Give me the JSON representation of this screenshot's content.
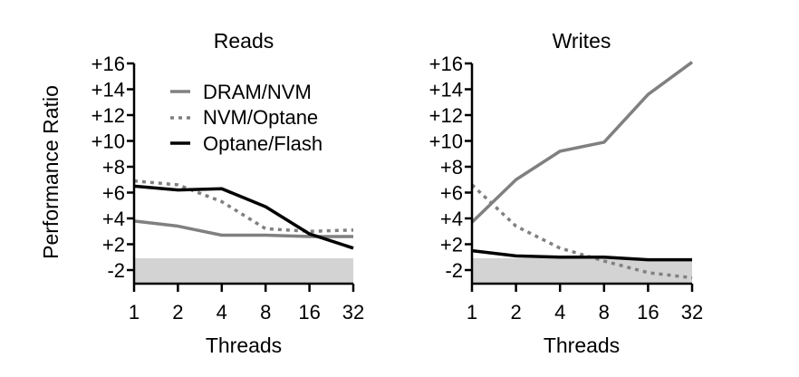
{
  "chart_data": [
    {
      "type": "line",
      "title": "Reads",
      "xlabel": "Threads",
      "ylabel": "Performance Ratio",
      "x": [
        "1",
        "2",
        "4",
        "8",
        "16",
        "32"
      ],
      "yticks": [
        "-2",
        "+2",
        "+4",
        "+6",
        "+8",
        "+10",
        "+12",
        "+14",
        "+16"
      ],
      "shaded_band": "-2",
      "series": [
        {
          "name": "DRAM/NVM",
          "style": "solid",
          "color": "#808080",
          "values": [
            3.8,
            3.4,
            2.7,
            2.7,
            2.6,
            2.6
          ]
        },
        {
          "name": "NVM/Optane",
          "style": "dotted",
          "color": "#808080",
          "values": [
            6.9,
            6.6,
            5.3,
            3.2,
            3.0,
            3.1
          ]
        },
        {
          "name": "Optane/Flash",
          "style": "solid",
          "color": "#000000",
          "values": [
            6.5,
            6.2,
            6.3,
            4.9,
            2.8,
            1.7
          ]
        }
      ],
      "legend": "top-right"
    },
    {
      "type": "line",
      "title": "Writes",
      "xlabel": "Threads",
      "ylabel": "",
      "x": [
        "1",
        "2",
        "4",
        "8",
        "16",
        "32"
      ],
      "yticks": [
        "-2",
        "+2",
        "+4",
        "+6",
        "+8",
        "+10",
        "+12",
        "+14",
        "+16"
      ],
      "shaded_band": "-2",
      "series": [
        {
          "name": "DRAM/NVM",
          "style": "solid",
          "color": "#808080",
          "values": [
            3.7,
            7.0,
            9.2,
            9.9,
            13.6,
            16.1
          ]
        },
        {
          "name": "NVM/Optane",
          "style": "dotted",
          "color": "#808080",
          "values": [
            6.6,
            3.4,
            1.7,
            0.7,
            -0.2,
            -0.6
          ]
        },
        {
          "name": "Optane/Flash",
          "style": "solid",
          "color": "#000000",
          "values": [
            1.5,
            1.1,
            1.0,
            1.0,
            0.8,
            0.8
          ]
        }
      ]
    }
  ]
}
